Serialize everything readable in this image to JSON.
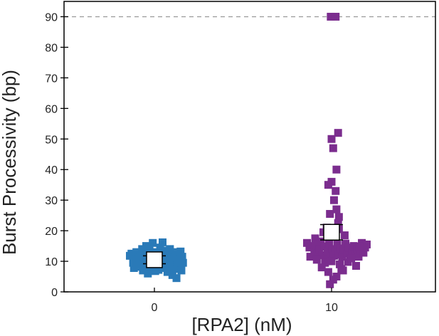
{
  "chart_data": {
    "type": "scatter",
    "subtype": "dot-strip-plot",
    "title": "",
    "xlabel": "[RPA2] (nM)",
    "ylabel": "Burst Processivity (bp)",
    "categories": [
      "0",
      "10"
    ],
    "ylim": [
      0,
      95
    ],
    "yticks": [
      0,
      10,
      20,
      30,
      40,
      50,
      60,
      70,
      80,
      90
    ],
    "reference_line": {
      "y": 90,
      "style": "dashed",
      "color": "#999999"
    },
    "marker": "square",
    "grid": false,
    "legend": "none",
    "series": [
      {
        "category": "0",
        "color": "#2a7ab8",
        "mean": 10.5,
        "error": 1.3,
        "points": [
          [
            -0.3,
            11.8
          ],
          [
            -0.28,
            12.5
          ],
          [
            -0.26,
            9.5
          ],
          [
            -0.25,
            7.8
          ],
          [
            -0.23,
            10.8
          ],
          [
            -0.22,
            13.0
          ],
          [
            -0.21,
            8.2
          ],
          [
            -0.19,
            11.2
          ],
          [
            -0.18,
            9.0
          ],
          [
            -0.17,
            12.0
          ],
          [
            -0.15,
            14.0
          ],
          [
            -0.14,
            7.0
          ],
          [
            -0.13,
            10.2
          ],
          [
            -0.12,
            12.8
          ],
          [
            -0.11,
            8.5
          ],
          [
            -0.1,
            15.0
          ],
          [
            -0.09,
            11.5
          ],
          [
            -0.08,
            6.0
          ],
          [
            -0.07,
            9.8
          ],
          [
            -0.06,
            13.5
          ],
          [
            -0.05,
            7.5
          ],
          [
            -0.04,
            10.8
          ],
          [
            -0.03,
            12.2
          ],
          [
            -0.02,
            16.0
          ],
          [
            -0.01,
            8.8
          ],
          [
            0.0,
            11.8
          ],
          [
            0.01,
            6.8
          ],
          [
            0.02,
            13.0
          ],
          [
            0.03,
            9.2
          ],
          [
            0.04,
            12.5
          ],
          [
            0.05,
            7.2
          ],
          [
            0.06,
            10.5
          ],
          [
            0.07,
            14.5
          ],
          [
            0.08,
            8.0
          ],
          [
            0.09,
            11.0
          ],
          [
            0.1,
            16.2
          ],
          [
            0.11,
            9.5
          ],
          [
            0.12,
            12.8
          ],
          [
            0.13,
            7.8
          ],
          [
            0.14,
            10.2
          ],
          [
            0.15,
            13.5
          ],
          [
            0.16,
            6.5
          ],
          [
            0.17,
            11.8
          ],
          [
            0.18,
            9.0
          ],
          [
            0.19,
            14.0
          ],
          [
            0.2,
            8.2
          ],
          [
            0.21,
            12.0
          ],
          [
            0.22,
            5.5
          ],
          [
            0.23,
            10.5
          ],
          [
            0.24,
            13.0
          ],
          [
            0.25,
            7.5
          ],
          [
            0.26,
            11.2
          ],
          [
            0.27,
            4.5
          ],
          [
            0.28,
            9.8
          ],
          [
            0.29,
            12.5
          ],
          [
            0.3,
            8.5
          ],
          [
            0.31,
            10.8
          ],
          [
            0.32,
            13.2
          ],
          [
            0.33,
            7.0
          ],
          [
            0.34,
            11.5
          ],
          [
            0.35,
            9.5
          ]
        ]
      },
      {
        "category": "10",
        "color": "#7b2d8e",
        "mean": 19.5,
        "error": 2.5,
        "points": [
          [
            -0.01,
            90
          ],
          [
            0.05,
            90
          ],
          [
            0.08,
            52
          ],
          [
            0.0,
            50
          ],
          [
            0.02,
            47
          ],
          [
            0.06,
            40
          ],
          [
            0.0,
            36
          ],
          [
            -0.04,
            35
          ],
          [
            0.05,
            33
          ],
          [
            0.03,
            30
          ],
          [
            0.06,
            27
          ],
          [
            0.09,
            24.5
          ],
          [
            -0.02,
            25.5
          ],
          [
            0.08,
            22.5
          ],
          [
            -0.06,
            21
          ],
          [
            -0.1,
            19.5
          ],
          [
            0.09,
            20.5
          ],
          [
            0.16,
            18.5
          ],
          [
            -0.2,
            17.5
          ],
          [
            0.04,
            18.0
          ],
          [
            -0.3,
            16.0
          ],
          [
            -0.27,
            14.5
          ],
          [
            -0.24,
            15.0
          ],
          [
            -0.21,
            13.5
          ],
          [
            -0.19,
            15.5
          ],
          [
            -0.17,
            12.5
          ],
          [
            -0.15,
            14.0
          ],
          [
            -0.13,
            16.5
          ],
          [
            -0.11,
            12.0
          ],
          [
            -0.09,
            14.8
          ],
          [
            -0.07,
            11.5
          ],
          [
            -0.05,
            13.2
          ],
          [
            -0.03,
            15.5
          ],
          [
            -0.01,
            12.5
          ],
          [
            0.01,
            14.0
          ],
          [
            0.03,
            11.8
          ],
          [
            0.05,
            13.5
          ],
          [
            0.07,
            15.5
          ],
          [
            0.09,
            12.2
          ],
          [
            0.11,
            14.2
          ],
          [
            0.13,
            11.5
          ],
          [
            0.15,
            13.8
          ],
          [
            0.17,
            15.8
          ],
          [
            0.19,
            12.5
          ],
          [
            0.21,
            14.5
          ],
          [
            0.23,
            11.0
          ],
          [
            0.25,
            13.0
          ],
          [
            0.27,
            15.0
          ],
          [
            0.29,
            12.0
          ],
          [
            0.31,
            14.0
          ],
          [
            0.33,
            11.5
          ],
          [
            0.35,
            13.5
          ],
          [
            0.37,
            16.0
          ],
          [
            0.39,
            12.8
          ],
          [
            0.41,
            14.5
          ],
          [
            0.43,
            15.5
          ],
          [
            -0.26,
            11.5
          ],
          [
            -0.18,
            10.5
          ],
          [
            -0.08,
            9.5
          ],
          [
            0.0,
            10.0
          ],
          [
            0.1,
            9.0
          ],
          [
            0.2,
            9.8
          ],
          [
            0.3,
            8.5
          ],
          [
            -0.12,
            8.0
          ],
          [
            0.12,
            7.5
          ],
          [
            -0.04,
            6.5
          ],
          [
            0.06,
            5.0
          ],
          [
            0.02,
            4.0
          ],
          [
            -0.02,
            2.5
          ],
          [
            0.14,
            7.0
          ],
          [
            0.24,
            11.0
          ],
          [
            0.34,
            14.8
          ]
        ]
      }
    ]
  }
}
